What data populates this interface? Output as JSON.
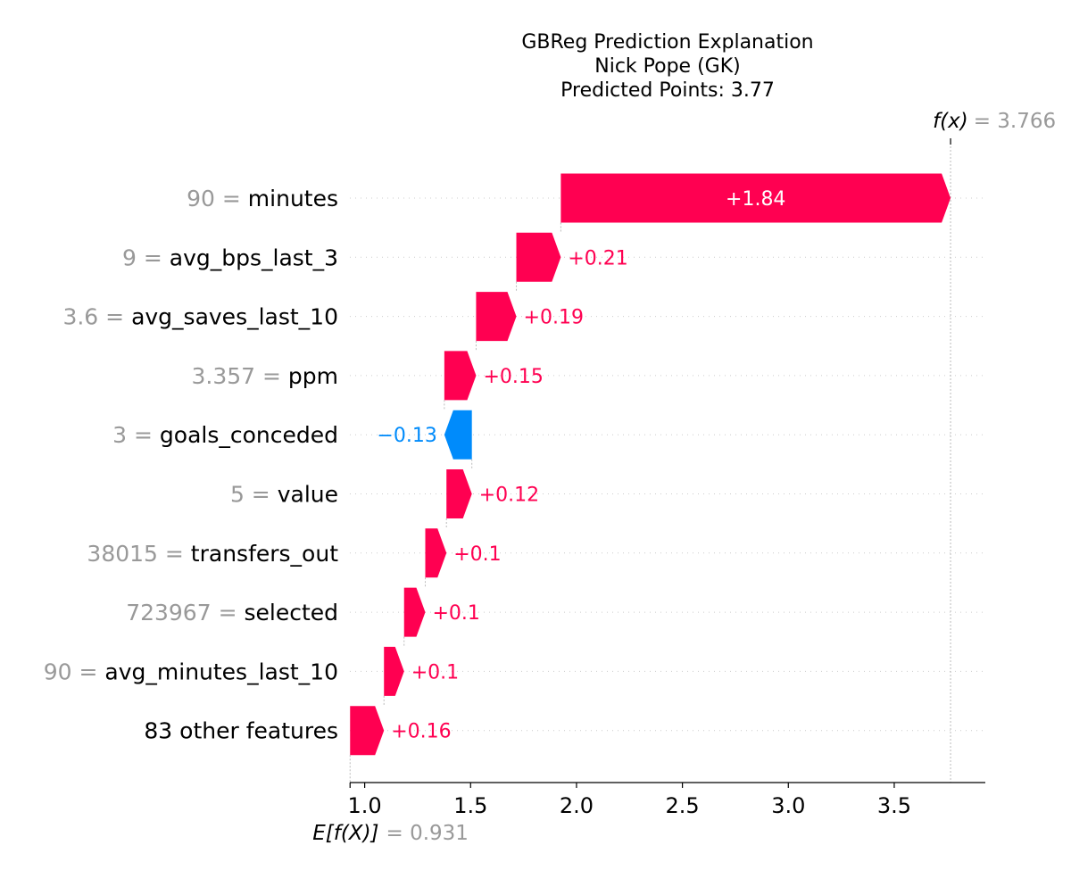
{
  "chart_data": {
    "type": "waterfall",
    "title_lines": [
      "GBReg Prediction Explanation",
      "Nick Pope (GK)",
      "Predicted Points: 3.77"
    ],
    "base_value": 0.931,
    "base_label": "E[f(X)]",
    "base_value_text": "= 0.931",
    "final_value": 3.766,
    "final_label": "f(x)",
    "final_value_text": "= 3.766",
    "xlim": [
      0.93,
      3.93
    ],
    "x_ticks": [
      1.0,
      1.5,
      2.0,
      2.5,
      3.0,
      3.5
    ],
    "x_tick_labels": [
      "1.0",
      "1.5",
      "2.0",
      "2.5",
      "3.0",
      "3.5"
    ],
    "positive_color": "#ff0051",
    "negative_color": "#008bfb",
    "features": [
      {
        "value": "90",
        "name": "minutes",
        "contribution": 1.84,
        "label": "+1.84",
        "start": 1.926,
        "end": 3.766
      },
      {
        "value": "9",
        "name": "avg_bps_last_3",
        "contribution": 0.21,
        "label": "+0.21",
        "start": 1.716,
        "end": 1.926
      },
      {
        "value": "3.6",
        "name": "avg_saves_last_10",
        "contribution": 0.19,
        "label": "+0.19",
        "start": 1.526,
        "end": 1.716
      },
      {
        "value": "3.357",
        "name": "ppm",
        "contribution": 0.15,
        "label": "+0.15",
        "start": 1.376,
        "end": 1.526
      },
      {
        "value": "3",
        "name": "goals_conceded",
        "contribution": -0.13,
        "label": "−0.13",
        "start": 1.506,
        "end": 1.376
      },
      {
        "value": "5",
        "name": "value",
        "contribution": 0.12,
        "label": "+0.12",
        "start": 1.386,
        "end": 1.506
      },
      {
        "value": "38015",
        "name": "transfers_out",
        "contribution": 0.1,
        "label": "+0.1",
        "start": 1.286,
        "end": 1.386
      },
      {
        "value": "723967",
        "name": "selected",
        "contribution": 0.1,
        "label": "+0.1",
        "start": 1.186,
        "end": 1.286
      },
      {
        "value": "90",
        "name": "avg_minutes_last_10",
        "contribution": 0.1,
        "label": "+0.1",
        "start": 1.091,
        "end": 1.186
      },
      {
        "value": "",
        "name": "83 other features",
        "contribution": 0.16,
        "label": "+0.16",
        "start": 0.931,
        "end": 1.091
      }
    ]
  }
}
